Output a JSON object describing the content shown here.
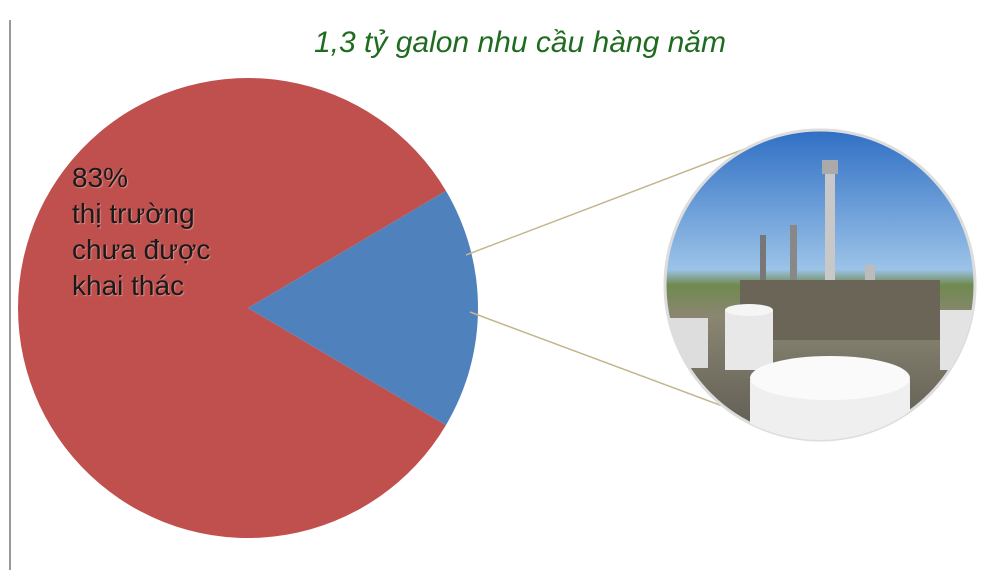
{
  "chart_data": {
    "type": "pie",
    "title": "1,3 tỷ galon nhu cầu hàng năm",
    "categories": [
      "thị trường chưa được khai thác",
      null
    ],
    "values": [
      83,
      17
    ],
    "value_labels": [
      "83%",
      null
    ],
    "colors": [
      "#c0504d",
      "#4f81bd"
    ]
  }
}
